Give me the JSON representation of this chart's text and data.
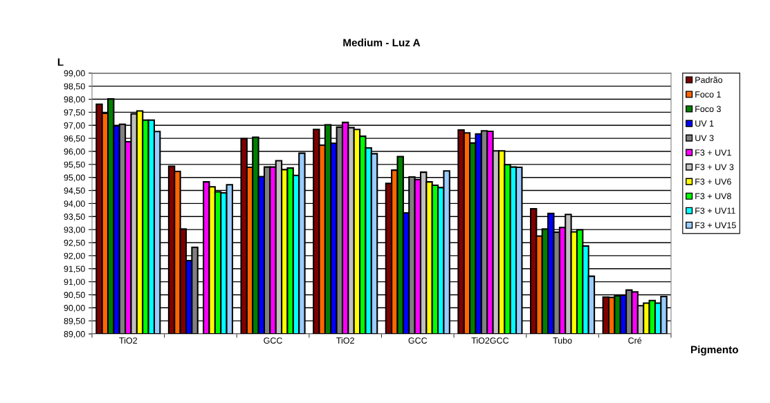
{
  "chart_data": {
    "type": "bar",
    "title": "Medium - Luz A",
    "ylabel": "L",
    "xlabel": "Pigmento",
    "categories": [
      "TiO2",
      null,
      "GCC",
      "TiO2",
      "GCC",
      "TiO2GCC",
      "Tubo",
      "Cré"
    ],
    "series": [
      {
        "name": "Padrão",
        "color": "#800000",
        "values": [
          97.81,
          95.43,
          96.49,
          96.84,
          94.77,
          96.82,
          93.8,
          90.41
        ]
      },
      {
        "name": "Foco 1",
        "color": "#ff6600",
        "values": [
          97.46,
          95.23,
          95.39,
          96.24,
          95.28,
          96.71,
          92.75,
          90.4
        ]
      },
      {
        "name": "Foco 3",
        "color": "#008000",
        "colors": [
          "#008000",
          "#800000",
          "#008000",
          "#008000",
          "#008000",
          "#008000",
          "#008000",
          "#008000"
        ],
        "values": [
          98.01,
          93.02,
          96.54,
          97.02,
          95.8,
          96.32,
          93.02,
          90.46
        ]
      },
      {
        "name": "UV 1",
        "color": "#0000ff",
        "values": [
          96.98,
          91.81,
          95.03,
          96.31,
          93.64,
          96.67,
          93.62,
          90.48
        ]
      },
      {
        "name": "UV 3",
        "color": "#808080",
        "values": [
          97.04,
          92.32,
          95.4,
          96.93,
          95.02,
          96.79,
          92.9,
          90.68
        ]
      },
      {
        "name": "F3 + UV1",
        "color": "#ff00ff",
        "values": [
          96.37,
          null,
          95.4,
          97.11,
          94.92,
          96.77,
          93.08,
          90.61
        ]
      },
      {
        "name": "F3 + UV 3",
        "color": "#c0c0c0",
        "colors": [
          "#c0c0c0",
          "#ff00ff",
          "#c0c0c0",
          "#c0c0c0",
          "#c0c0c0",
          "#c0c0c0",
          "#c0c0c0",
          "#c0c0c0"
        ],
        "values": [
          97.44,
          94.83,
          95.64,
          96.91,
          95.2,
          96.02,
          93.58,
          90.08
        ]
      },
      {
        "name": "F3 + UV6",
        "color": "#ffff00",
        "values": [
          97.55,
          94.64,
          95.3,
          96.84,
          94.83,
          96.02,
          92.91,
          90.18
        ]
      },
      {
        "name": "F3 + UV8",
        "color": "#00ff00",
        "values": [
          97.2,
          94.45,
          95.36,
          96.58,
          94.7,
          95.49,
          92.99,
          90.28
        ]
      },
      {
        "name": "F3 + UV11",
        "color": "#00ffff",
        "values": [
          97.2,
          94.41,
          95.08,
          96.13,
          94.61,
          95.4,
          92.37,
          90.18
        ]
      },
      {
        "name": "F3 + UV15",
        "color": "#99ccff",
        "values": [
          96.76,
          94.72,
          95.93,
          95.91,
          95.25,
          95.39,
          91.21,
          90.43
        ]
      }
    ],
    "ylim": [
      89,
      99
    ],
    "yticks": [
      {
        "value": 89,
        "label": "89,00"
      },
      {
        "value": 89.5,
        "label": "89,50"
      },
      {
        "value": 90,
        "label": "90,00"
      },
      {
        "value": 90.5,
        "label": "90,50"
      },
      {
        "value": 91,
        "label": "91,00"
      },
      {
        "value": 91.5,
        "label": "91,50"
      },
      {
        "value": 92,
        "label": "92,00"
      },
      {
        "value": 92.5,
        "label": "92,50"
      },
      {
        "value": 93,
        "label": "93,00"
      },
      {
        "value": 93.5,
        "label": "93,50"
      },
      {
        "value": 94,
        "label": "94,00"
      },
      {
        "value": 94.5,
        "label": "94,50"
      },
      {
        "value": 95,
        "label": "95,00"
      },
      {
        "value": 95.5,
        "label": "95,50"
      },
      {
        "value": 96,
        "label": "96,00"
      },
      {
        "value": 96.5,
        "label": "96,50"
      },
      {
        "value": 97,
        "label": "97,00"
      },
      {
        "value": 97.5,
        "label": "97,50"
      },
      {
        "value": 98,
        "label": "98,00"
      },
      {
        "value": 98.5,
        "label": "98,50"
      },
      {
        "value": 99,
        "label": "99,00"
      }
    ],
    "grid": "y",
    "legend": "right"
  }
}
